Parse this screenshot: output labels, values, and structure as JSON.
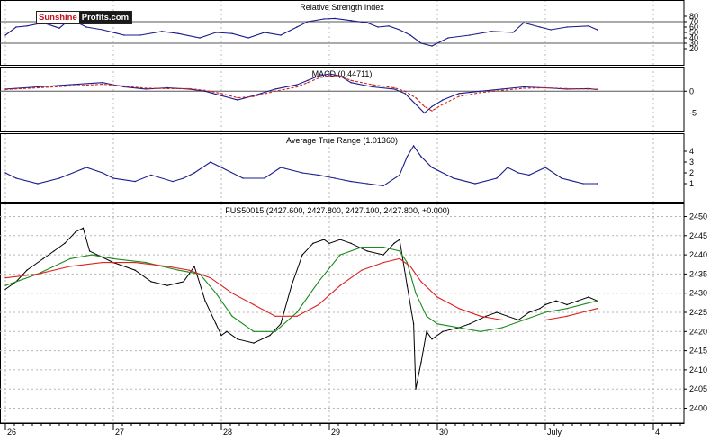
{
  "logo": {
    "part1": "Sunshine",
    "part2": "Profits.com"
  },
  "colors": {
    "price": "#000000",
    "ma_fast": "#1a8a1a",
    "ma_slow": "#dd2222",
    "indicator": "#1a1a8c",
    "signal": "#cc2222",
    "grid": "#b8b8b8",
    "frame": "#000000"
  },
  "x_axis": {
    "labels": [
      "26",
      "27",
      "28",
      "29",
      "30",
      "July",
      "4"
    ],
    "positions_days": [
      0,
      1,
      2,
      3,
      4,
      5,
      6
    ]
  },
  "chart_data": [
    {
      "type": "line",
      "title": "Relative Strength Index",
      "ylim": [
        0,
        100
      ],
      "yticks": [
        20,
        30,
        40,
        50,
        60,
        70,
        80
      ],
      "reference_lines": [
        30,
        70
      ],
      "series": [
        {
          "x": [
            0.0,
            0.1,
            0.2,
            0.35,
            0.5,
            0.6,
            0.75,
            0.9,
            1.0,
            1.1,
            1.25,
            1.45,
            1.6,
            1.8,
            1.95,
            2.1,
            2.25,
            2.4,
            2.55,
            2.7,
            2.8,
            2.95,
            3.05,
            3.2,
            3.35,
            3.45,
            3.55,
            3.65,
            3.75,
            3.85,
            3.95,
            4.1,
            4.3,
            4.5,
            4.7,
            4.8,
            4.95,
            5.05,
            5.2,
            5.4,
            5.48
          ],
          "values": [
            45,
            60,
            62,
            68,
            58,
            75,
            60,
            55,
            50,
            45,
            45,
            52,
            48,
            40,
            50,
            48,
            40,
            50,
            45,
            60,
            70,
            75,
            76,
            72,
            68,
            60,
            62,
            55,
            45,
            30,
            25,
            40,
            45,
            52,
            50,
            68,
            60,
            55,
            60,
            62,
            55
          ]
        }
      ]
    },
    {
      "type": "line",
      "title": "MACD (0.44711)",
      "ylim": [
        -8,
        4
      ],
      "yticks": [
        -5,
        0
      ],
      "reference_lines": [
        0
      ],
      "series": [
        {
          "x": [
            0.0,
            0.3,
            0.6,
            0.9,
            1.1,
            1.3,
            1.5,
            1.7,
            1.85,
            2.0,
            2.15,
            2.3,
            2.5,
            2.7,
            2.8,
            2.9,
            3.0,
            3.1,
            3.2,
            3.4,
            3.6,
            3.7,
            3.8,
            3.88,
            3.95,
            4.05,
            4.2,
            4.4,
            4.6,
            4.8,
            5.0,
            5.2,
            5.4,
            5.48
          ],
          "values": [
            0.5,
            1.0,
            1.5,
            2.0,
            1.0,
            0.5,
            0.8,
            0.5,
            0.0,
            -1.0,
            -2.0,
            -1.0,
            0.5,
            1.5,
            2.5,
            3.5,
            4.0,
            3.5,
            2.0,
            1.0,
            0.5,
            -0.5,
            -3.0,
            -5.0,
            -3.5,
            -2.0,
            -0.5,
            0.0,
            0.5,
            1.0,
            0.8,
            0.5,
            0.6,
            0.4
          ]
        },
        {
          "x": [
            0.0,
            0.3,
            0.6,
            0.9,
            1.1,
            1.3,
            1.5,
            1.7,
            1.85,
            2.0,
            2.15,
            2.3,
            2.5,
            2.7,
            2.8,
            2.9,
            3.0,
            3.1,
            3.2,
            3.4,
            3.6,
            3.7,
            3.8,
            3.88,
            3.95,
            4.05,
            4.2,
            4.4,
            4.6,
            4.8,
            5.0,
            5.2,
            5.4,
            5.48
          ],
          "values": [
            0.4,
            0.8,
            1.2,
            1.6,
            1.2,
            0.7,
            0.6,
            0.6,
            0.2,
            -0.5,
            -1.5,
            -1.2,
            0.0,
            1.0,
            2.0,
            3.0,
            3.6,
            3.5,
            2.5,
            1.5,
            0.8,
            0.0,
            -1.5,
            -3.5,
            -4.5,
            -3.0,
            -1.2,
            -0.3,
            0.2,
            0.7,
            0.8,
            0.6,
            0.5,
            0.45
          ]
        }
      ]
    },
    {
      "type": "line",
      "title": "Average True Range (1.01360)",
      "ylim": [
        0,
        5
      ],
      "yticks": [
        1,
        2,
        3,
        4
      ],
      "series": [
        {
          "x": [
            0.0,
            0.1,
            0.3,
            0.5,
            0.75,
            0.9,
            1.0,
            1.2,
            1.35,
            1.55,
            1.65,
            1.75,
            1.9,
            2.0,
            2.2,
            2.4,
            2.55,
            2.75,
            2.9,
            3.05,
            3.2,
            3.35,
            3.5,
            3.65,
            3.72,
            3.78,
            3.85,
            3.95,
            4.15,
            4.35,
            4.55,
            4.65,
            4.75,
            4.85,
            5.0,
            5.15,
            5.35,
            5.48
          ],
          "values": [
            2.0,
            1.5,
            1.0,
            1.5,
            2.5,
            2.0,
            1.5,
            1.2,
            1.8,
            1.2,
            1.5,
            2.0,
            3.0,
            2.5,
            1.5,
            1.5,
            2.5,
            2.0,
            1.8,
            1.5,
            1.2,
            1.0,
            0.8,
            1.8,
            3.5,
            4.5,
            3.5,
            2.5,
            1.5,
            1.0,
            1.5,
            2.5,
            2.0,
            1.8,
            2.5,
            1.5,
            1.0,
            1.0
          ]
        }
      ]
    },
    {
      "type": "line",
      "title": "FUS50015 (2427.600, 2427.800, 2427.100, 2427.800, +0.000)",
      "ylim": [
        2398,
        2452
      ],
      "yticks": [
        2400,
        2405,
        2410,
        2415,
        2420,
        2425,
        2430,
        2435,
        2440,
        2445,
        2450
      ],
      "series": [
        {
          "x": [
            0.0,
            0.1,
            0.2,
            0.35,
            0.45,
            0.55,
            0.65,
            0.72,
            0.78,
            0.85,
            1.0,
            1.2,
            1.35,
            1.5,
            1.65,
            1.75,
            1.85,
            1.95,
            2.0,
            2.05,
            2.15,
            2.3,
            2.45,
            2.55,
            2.65,
            2.75,
            2.85,
            2.95,
            3.0,
            3.1,
            3.2,
            3.35,
            3.5,
            3.6,
            3.65,
            3.72,
            3.78,
            3.8,
            3.85,
            3.9,
            3.95,
            4.05,
            4.2,
            4.3,
            4.45,
            4.55,
            4.65,
            4.75,
            4.85,
            4.95,
            5.0,
            5.1,
            5.2,
            5.3,
            5.4,
            5.48
          ],
          "values": [
            2431,
            2433,
            2436,
            2439,
            2441,
            2443,
            2446,
            2447,
            2441,
            2440,
            2438,
            2436,
            2433,
            2432,
            2433,
            2437,
            2428,
            2422,
            2419,
            2420,
            2418,
            2417,
            2419,
            2422,
            2432,
            2440,
            2443,
            2444,
            2443,
            2444,
            2443,
            2441,
            2440,
            2443,
            2444,
            2432,
            2422,
            2405,
            2412,
            2420,
            2418,
            2420,
            2421,
            2422,
            2424,
            2425,
            2424,
            2423,
            2425,
            2426,
            2427,
            2428,
            2427,
            2428,
            2429,
            2428
          ]
        },
        {
          "x": [
            0.0,
            0.3,
            0.6,
            0.8,
            1.0,
            1.3,
            1.6,
            1.8,
            1.95,
            2.1,
            2.3,
            2.5,
            2.7,
            2.9,
            3.1,
            3.3,
            3.5,
            3.65,
            3.72,
            3.8,
            3.9,
            4.0,
            4.2,
            4.4,
            4.6,
            4.8,
            5.0,
            5.2,
            5.48
          ],
          "values": [
            2432,
            2435,
            2439,
            2440,
            2439,
            2438,
            2436,
            2435,
            2430,
            2424,
            2420,
            2420,
            2425,
            2433,
            2440,
            2442,
            2442,
            2441,
            2438,
            2430,
            2424,
            2422,
            2421,
            2420,
            2421,
            2423,
            2425,
            2426,
            2428
          ]
        },
        {
          "x": [
            0.0,
            0.3,
            0.6,
            0.9,
            1.2,
            1.5,
            1.7,
            1.9,
            2.1,
            2.3,
            2.5,
            2.7,
            2.9,
            3.1,
            3.3,
            3.5,
            3.65,
            3.75,
            3.85,
            4.0,
            4.2,
            4.4,
            4.6,
            4.8,
            5.0,
            5.2,
            5.48
          ],
          "values": [
            2434,
            2435,
            2437,
            2438,
            2438,
            2437,
            2436,
            2434,
            2430,
            2427,
            2424,
            2424,
            2427,
            2432,
            2436,
            2438,
            2439,
            2437,
            2433,
            2429,
            2426,
            2424,
            2423,
            2423,
            2423,
            2424,
            2426
          ]
        }
      ]
    }
  ]
}
